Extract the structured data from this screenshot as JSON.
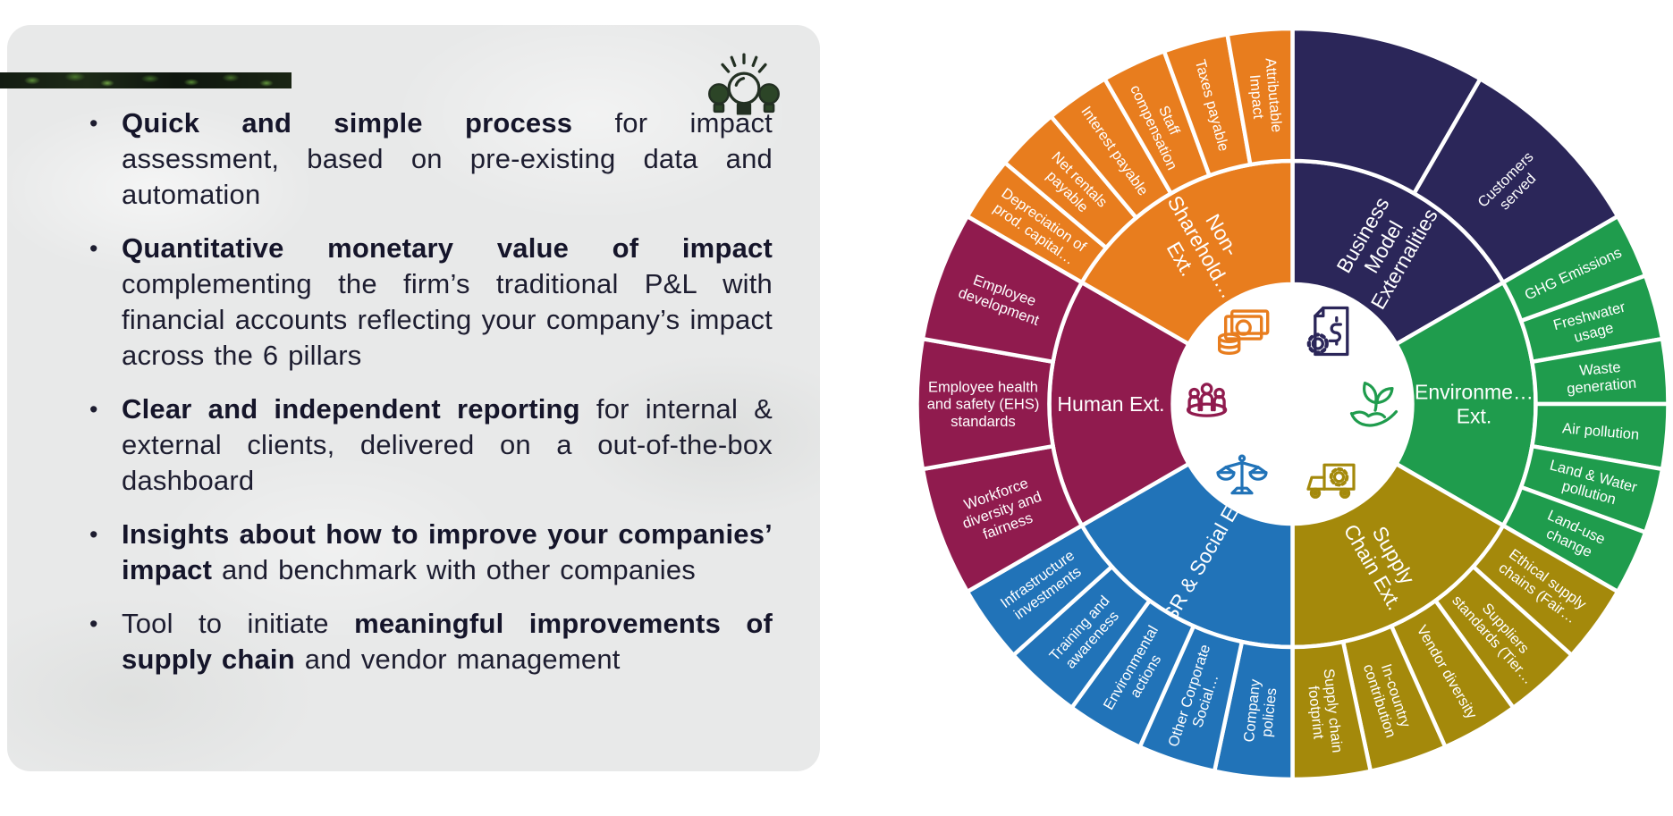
{
  "panel": {
    "icon": "lightbulb-icon",
    "bullets": [
      {
        "segments": [
          {
            "t": "Quick and simple process",
            "b": true
          },
          {
            "t": " for impact assessment, based on pre-existing data and automation",
            "b": false
          }
        ]
      },
      {
        "segments": [
          {
            "t": "Quantitative monetary value of impact",
            "b": true
          },
          {
            "t": " complementing the firm’s traditional P&L with financial accounts reflecting your company’s impact across the 6 pillars",
            "b": false
          }
        ]
      },
      {
        "segments": [
          {
            "t": "Clear and independent reporting",
            "b": true
          },
          {
            "t": " for internal & external clients, delivered on a out-of-the-box dashboard",
            "b": false
          }
        ]
      },
      {
        "segments": [
          {
            "t": "Insights about how to improve your companies’ impact",
            "b": true
          },
          {
            "t": " and benchmark with other companies",
            "b": false
          }
        ]
      },
      {
        "segments": [
          {
            "t": "Tool to initiate ",
            "b": false
          },
          {
            "t": "meaningful improvements of supply chain",
            "b": true
          },
          {
            "t": " and vendor management",
            "b": false
          }
        ]
      }
    ]
  },
  "chart_data": {
    "type": "sunburst",
    "rings": [
      "pillar",
      "subcategory"
    ],
    "legend_position": "none",
    "categories": [
      {
        "label": "Business\nModel\nExternalities",
        "color": "#2B2659",
        "start": 0,
        "end": 60,
        "icon": "document-gear-icon",
        "children": [
          "",
          "Customers\nserved"
        ]
      },
      {
        "label": "Environme…\nExt.",
        "color": "#1F9C4D",
        "start": 60,
        "end": 120,
        "icon": "plant-hand-icon",
        "children": [
          "GHG Emissions",
          "Freshwater\nusage",
          "Waste\ngeneration",
          "Air pollution",
          "Land & Water\npollution",
          "Land-use\nchange"
        ]
      },
      {
        "label": "Supply\nChain Ext.",
        "color": "#A4890B",
        "start": 120,
        "end": 180,
        "icon": "truck-icon",
        "children": [
          "Ethical supply\nchains (Fair…",
          "Suppliers\nstandards (Tier…",
          "Vendor diversity",
          "In-country\ncontribution",
          "Supply chain\nfootprint"
        ]
      },
      {
        "label": "CSR & Social Ext.",
        "color": "#2173B8",
        "start": 180,
        "end": 240,
        "icon": "scales-icon",
        "children": [
          "Company\npolicies",
          "Other Corporate\nSocial…",
          "Environmental\nactions",
          "Training and\nawareness",
          "Infrastructure\ninvestments"
        ]
      },
      {
        "label": "Human Ext.",
        "color": "#901B4E",
        "start": 240,
        "end": 300,
        "icon": "people-icon",
        "children": [
          "Workforce\ndiversity and\nfairness",
          "Employee health\nand safety (EHS)\nstandards",
          "Employee\ndevelopment"
        ]
      },
      {
        "label": "Non-\nSharehold…\nExt.",
        "color": "#E87D1E",
        "start": 300,
        "end": 360,
        "icon": "money-icon",
        "children": [
          "Depreciation of\nprod. capital…",
          "Net rentals\npayable",
          "Interest payable",
          "Staff\ncompensation",
          "Taxes payable",
          "Attributable\nImpact"
        ]
      }
    ]
  },
  "colors": {
    "panel_bg": "#E8E9E9",
    "text": "#1D1D30",
    "bulb": "#233023",
    "bulb_fill": "#2C4527",
    "segment_divider": "#FFFFFF"
  }
}
